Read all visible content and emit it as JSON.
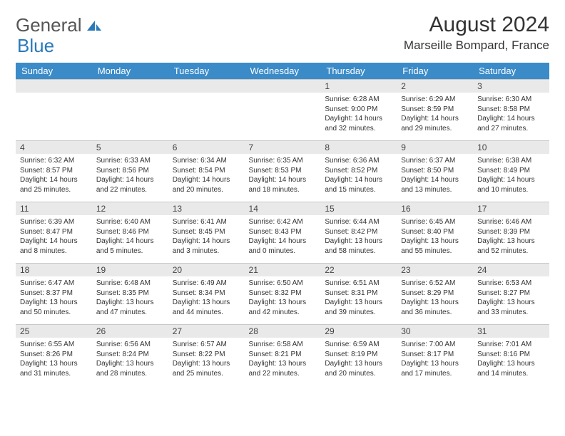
{
  "logo": {
    "text1": "General",
    "text2": "Blue"
  },
  "title": "August 2024",
  "location": "Marseille Bompard, France",
  "colors": {
    "header_bg": "#3b8bc8",
    "band_bg": "#e9e9e9",
    "border": "#c8c8c8",
    "text": "#333333",
    "logo_gray": "#555555",
    "logo_blue": "#2a7ab9"
  },
  "dayNames": [
    "Sunday",
    "Monday",
    "Tuesday",
    "Wednesday",
    "Thursday",
    "Friday",
    "Saturday"
  ],
  "weeks": [
    [
      {
        "n": "",
        "sr": "",
        "ss": "",
        "dl": ""
      },
      {
        "n": "",
        "sr": "",
        "ss": "",
        "dl": ""
      },
      {
        "n": "",
        "sr": "",
        "ss": "",
        "dl": ""
      },
      {
        "n": "",
        "sr": "",
        "ss": "",
        "dl": ""
      },
      {
        "n": "1",
        "sr": "6:28 AM",
        "ss": "9:00 PM",
        "dl": "14 hours and 32 minutes."
      },
      {
        "n": "2",
        "sr": "6:29 AM",
        "ss": "8:59 PM",
        "dl": "14 hours and 29 minutes."
      },
      {
        "n": "3",
        "sr": "6:30 AM",
        "ss": "8:58 PM",
        "dl": "14 hours and 27 minutes."
      }
    ],
    [
      {
        "n": "4",
        "sr": "6:32 AM",
        "ss": "8:57 PM",
        "dl": "14 hours and 25 minutes."
      },
      {
        "n": "5",
        "sr": "6:33 AM",
        "ss": "8:56 PM",
        "dl": "14 hours and 22 minutes."
      },
      {
        "n": "6",
        "sr": "6:34 AM",
        "ss": "8:54 PM",
        "dl": "14 hours and 20 minutes."
      },
      {
        "n": "7",
        "sr": "6:35 AM",
        "ss": "8:53 PM",
        "dl": "14 hours and 18 minutes."
      },
      {
        "n": "8",
        "sr": "6:36 AM",
        "ss": "8:52 PM",
        "dl": "14 hours and 15 minutes."
      },
      {
        "n": "9",
        "sr": "6:37 AM",
        "ss": "8:50 PM",
        "dl": "14 hours and 13 minutes."
      },
      {
        "n": "10",
        "sr": "6:38 AM",
        "ss": "8:49 PM",
        "dl": "14 hours and 10 minutes."
      }
    ],
    [
      {
        "n": "11",
        "sr": "6:39 AM",
        "ss": "8:47 PM",
        "dl": "14 hours and 8 minutes."
      },
      {
        "n": "12",
        "sr": "6:40 AM",
        "ss": "8:46 PM",
        "dl": "14 hours and 5 minutes."
      },
      {
        "n": "13",
        "sr": "6:41 AM",
        "ss": "8:45 PM",
        "dl": "14 hours and 3 minutes."
      },
      {
        "n": "14",
        "sr": "6:42 AM",
        "ss": "8:43 PM",
        "dl": "14 hours and 0 minutes."
      },
      {
        "n": "15",
        "sr": "6:44 AM",
        "ss": "8:42 PM",
        "dl": "13 hours and 58 minutes."
      },
      {
        "n": "16",
        "sr": "6:45 AM",
        "ss": "8:40 PM",
        "dl": "13 hours and 55 minutes."
      },
      {
        "n": "17",
        "sr": "6:46 AM",
        "ss": "8:39 PM",
        "dl": "13 hours and 52 minutes."
      }
    ],
    [
      {
        "n": "18",
        "sr": "6:47 AM",
        "ss": "8:37 PM",
        "dl": "13 hours and 50 minutes."
      },
      {
        "n": "19",
        "sr": "6:48 AM",
        "ss": "8:35 PM",
        "dl": "13 hours and 47 minutes."
      },
      {
        "n": "20",
        "sr": "6:49 AM",
        "ss": "8:34 PM",
        "dl": "13 hours and 44 minutes."
      },
      {
        "n": "21",
        "sr": "6:50 AM",
        "ss": "8:32 PM",
        "dl": "13 hours and 42 minutes."
      },
      {
        "n": "22",
        "sr": "6:51 AM",
        "ss": "8:31 PM",
        "dl": "13 hours and 39 minutes."
      },
      {
        "n": "23",
        "sr": "6:52 AM",
        "ss": "8:29 PM",
        "dl": "13 hours and 36 minutes."
      },
      {
        "n": "24",
        "sr": "6:53 AM",
        "ss": "8:27 PM",
        "dl": "13 hours and 33 minutes."
      }
    ],
    [
      {
        "n": "25",
        "sr": "6:55 AM",
        "ss": "8:26 PM",
        "dl": "13 hours and 31 minutes."
      },
      {
        "n": "26",
        "sr": "6:56 AM",
        "ss": "8:24 PM",
        "dl": "13 hours and 28 minutes."
      },
      {
        "n": "27",
        "sr": "6:57 AM",
        "ss": "8:22 PM",
        "dl": "13 hours and 25 minutes."
      },
      {
        "n": "28",
        "sr": "6:58 AM",
        "ss": "8:21 PM",
        "dl": "13 hours and 22 minutes."
      },
      {
        "n": "29",
        "sr": "6:59 AM",
        "ss": "8:19 PM",
        "dl": "13 hours and 20 minutes."
      },
      {
        "n": "30",
        "sr": "7:00 AM",
        "ss": "8:17 PM",
        "dl": "13 hours and 17 minutes."
      },
      {
        "n": "31",
        "sr": "7:01 AM",
        "ss": "8:16 PM",
        "dl": "13 hours and 14 minutes."
      }
    ]
  ],
  "labels": {
    "sunrise": "Sunrise:",
    "sunset": "Sunset:",
    "daylight": "Daylight:"
  }
}
